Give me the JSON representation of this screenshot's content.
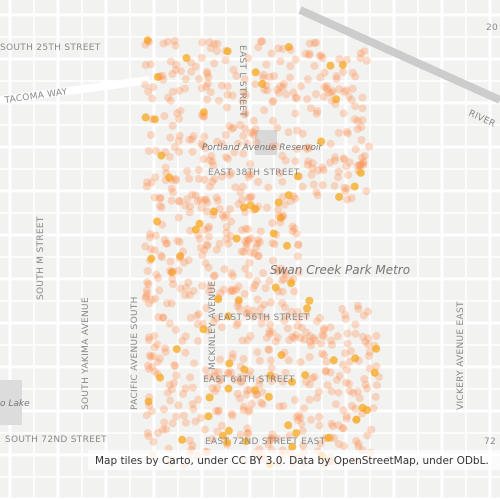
{
  "labels": {
    "s25": "SOUTH 25TH STREET",
    "tacoma": "TACOMA WAY",
    "el": "EAST L STREET",
    "reservoir": "Portland Avenue Reservoir",
    "e38": "EAST 38TH STREET",
    "swan": "Swan Creek Park Metro",
    "sm": "SOUTH M STREET",
    "yakima": "SOUTH YAKIMA AVENUE",
    "pacific": "PACIFIC AVENUE SOUTH",
    "mckinley": "MCKINLEY AVENUE",
    "e56": "EAST 56TH STREET",
    "e64": "EAST 64TH STREET",
    "s72": "SOUTH 72ND STREET",
    "e72": "EAST 72ND STREET EAST",
    "vickery": "VICKERY AVENUE EAST",
    "river": "RIVER",
    "lake": "o Lake",
    "n20": "20",
    "n72": "72"
  },
  "attribution": "Map tiles by Carto, under CC BY 3.0. Data by OpenStreetMap, under ODbL."
}
